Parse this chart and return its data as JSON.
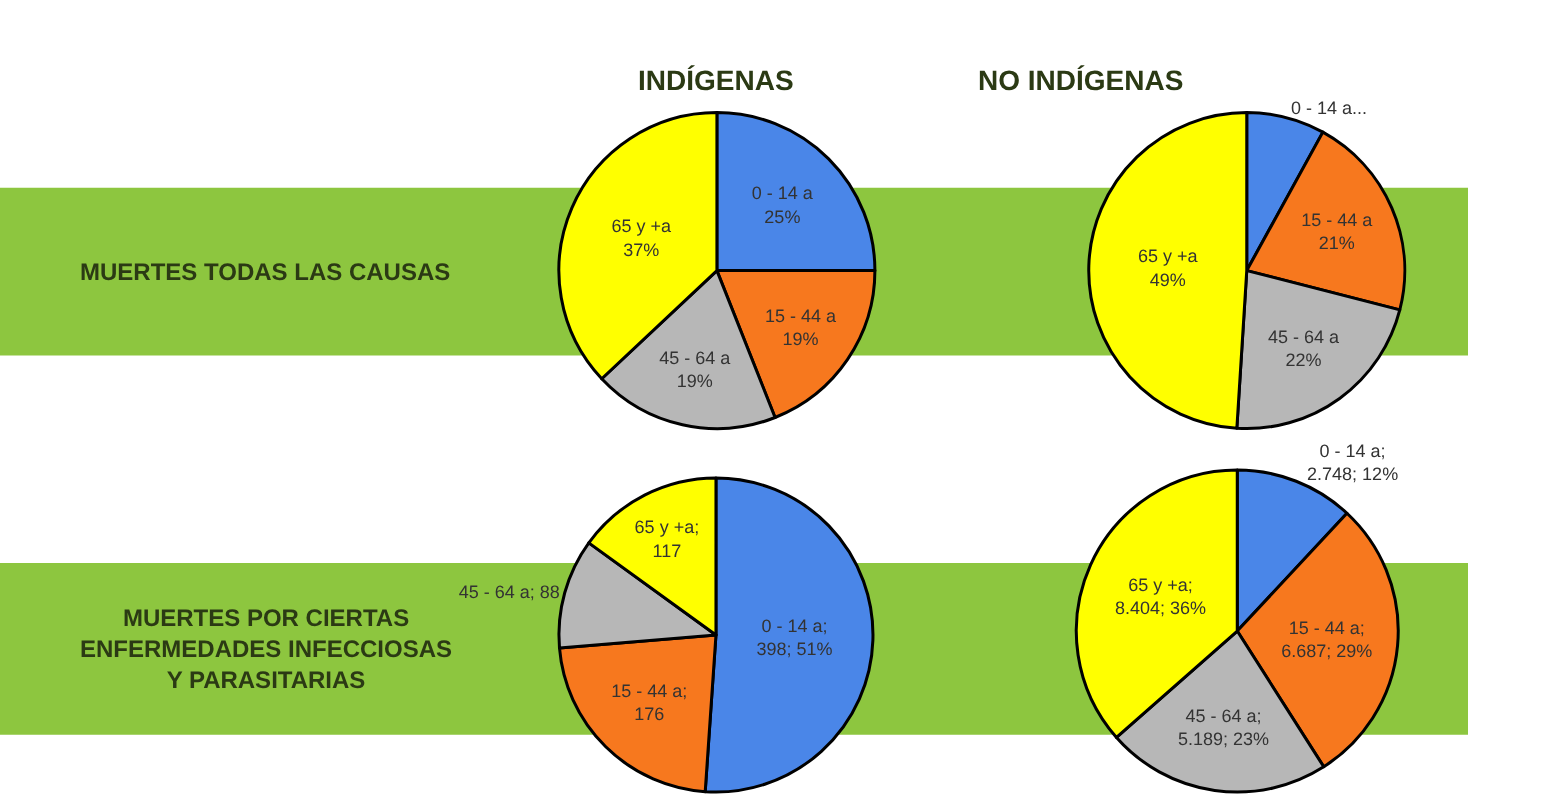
{
  "chart_data": [
    {
      "type": "pie",
      "title": "INDÍGENAS",
      "annotations": [
        "MUERTES TODAS LAS CAUSAS"
      ],
      "categories": [
        "0 - 14 a",
        "15 - 44 a",
        "45 - 64 a",
        "65 y +a"
      ],
      "values": [
        25,
        19,
        19,
        37
      ],
      "colors": [
        "#4a86e8",
        "#f7781e",
        "#b7b7b7",
        "#ffff00"
      ],
      "value_labels": [
        "\n25%",
        "\n19%",
        "\n19%",
        "\n37%"
      ]
    },
    {
      "type": "pie",
      "title": "NO INDÍGENAS",
      "categories": [
        "0 - 14 a...",
        "15 - 44 a",
        "45 - 64 a",
        "65 y +a"
      ],
      "values": [
        8,
        21,
        22,
        49
      ],
      "colors": [
        "#4a86e8",
        "#f7781e",
        "#b7b7b7",
        "#ffff00"
      ],
      "value_labels": [
        null,
        "\n21%",
        "\n22%",
        "\n49%"
      ]
    },
    {
      "type": "pie",
      "annotations": [
        "MUERTES POR CIERTAS\nENFERMEDADES INFECCIOSAS\nY PARASITARIAS"
      ],
      "categories": [
        "0 - 14 a",
        "15 - 44 a",
        "45 - 64 a",
        "65 y +a"
      ],
      "values": [
        398,
        176,
        88,
        117
      ],
      "colors": [
        "#4a86e8",
        "#f7781e",
        "#b7b7b7",
        "#ffff00"
      ],
      "value_labels": [
        ";\n398; 51%",
        ";\n176",
        "; 88",
        ";\n117"
      ]
    },
    {
      "type": "pie",
      "categories": [
        "0 - 14 a",
        "15 - 44 a",
        "45 - 64 a",
        "65 y +a"
      ],
      "values": [
        2748,
        6687,
        5189,
        8404
      ],
      "colors": [
        "#4a86e8",
        "#f7781e",
        "#b7b7b7",
        "#ffff00"
      ],
      "value_labels": [
        ";\n2.748; 12%",
        ";\n6.687; 29%",
        ";\n5.189; 23%",
        ";\n8.404; 36%"
      ]
    }
  ]
}
